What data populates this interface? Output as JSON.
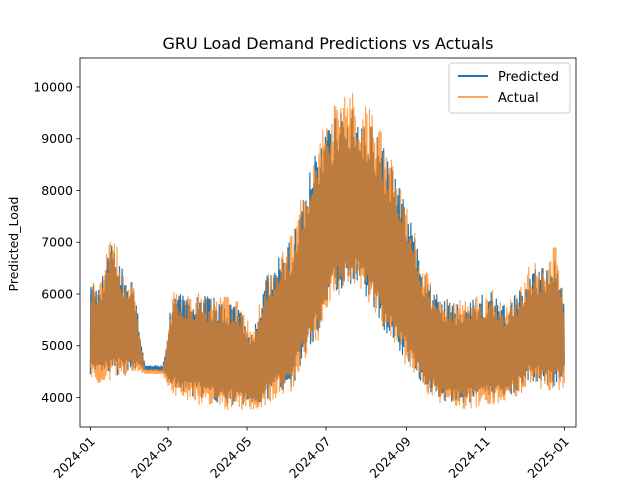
{
  "chart_data": {
    "type": "line",
    "title": "GRU Load Demand Predictions vs Actuals",
    "xlabel": "",
    "ylabel": "Predicted_Load",
    "x_range": [
      "2023-12-24",
      "2025-01-10"
    ],
    "ylim": [
      3430,
      10560
    ],
    "x_ticks": [
      "2024-01",
      "2024-03",
      "2024-05",
      "2024-07",
      "2024-09",
      "2024-11",
      "2025-01"
    ],
    "y_ticks": [
      4000,
      5000,
      6000,
      7000,
      8000,
      9000,
      10000
    ],
    "grid": false,
    "legend_position": "top-right",
    "series": [
      {
        "name": "Predicted",
        "color": "#1f77b4",
        "envelope": {
          "x": [
            "2024-01-01",
            "2024-01-05",
            "2024-01-10",
            "2024-01-15",
            "2024-01-22",
            "2024-01-28",
            "2024-02-02",
            "2024-02-12",
            "2024-02-26",
            "2024-03-05",
            "2024-03-15",
            "2024-03-25",
            "2024-04-05",
            "2024-04-15",
            "2024-04-25",
            "2024-05-05",
            "2024-05-15",
            "2024-05-25",
            "2024-06-05",
            "2024-06-15",
            "2024-06-25",
            "2024-07-05",
            "2024-07-15",
            "2024-07-25",
            "2024-08-05",
            "2024-08-15",
            "2024-08-25",
            "2024-09-05",
            "2024-09-15",
            "2024-09-25",
            "2024-10-05",
            "2024-10-15",
            "2024-10-25",
            "2024-11-05",
            "2024-11-15",
            "2024-11-25",
            "2024-12-05",
            "2024-12-15",
            "2024-12-25",
            "2025-01-01"
          ],
          "high": [
            6550,
            6200,
            6300,
            7100,
            6900,
            6300,
            6450,
            4620,
            4620,
            6100,
            5950,
            6050,
            5950,
            5950,
            5800,
            5200,
            6300,
            6700,
            7100,
            8000,
            9000,
            9300,
            9800,
            9500,
            9400,
            8800,
            8300,
            7400,
            6400,
            6000,
            5900,
            5900,
            6000,
            6100,
            5800,
            6000,
            6500,
            6500,
            6900,
            5900
          ],
          "low": [
            4450,
            4350,
            4400,
            4350,
            4400,
            4450,
            4550,
            4520,
            4500,
            4100,
            4050,
            4000,
            3900,
            3850,
            3850,
            3850,
            3900,
            4100,
            4200,
            4800,
            5200,
            6000,
            6100,
            6200,
            5800,
            5300,
            4900,
            4600,
            4200,
            4000,
            3850,
            3850,
            3900,
            3950,
            4000,
            4100,
            4300,
            4250,
            4200,
            4450
          ]
        }
      },
      {
        "name": "Actual",
        "color": "#ff7f0e",
        "envelope": {
          "x": [
            "2024-01-01",
            "2024-01-05",
            "2024-01-10",
            "2024-01-15",
            "2024-01-22",
            "2024-01-28",
            "2024-02-02",
            "2024-02-12",
            "2024-02-26",
            "2024-03-05",
            "2024-03-15",
            "2024-03-25",
            "2024-04-05",
            "2024-04-15",
            "2024-04-25",
            "2024-05-05",
            "2024-05-15",
            "2024-05-25",
            "2024-06-05",
            "2024-06-15",
            "2024-06-25",
            "2024-07-05",
            "2024-07-15",
            "2024-07-25",
            "2024-08-05",
            "2024-08-15",
            "2024-08-25",
            "2024-09-05",
            "2024-09-15",
            "2024-09-25",
            "2024-10-05",
            "2024-10-15",
            "2024-10-25",
            "2024-11-05",
            "2024-11-15",
            "2024-11-25",
            "2024-12-05",
            "2024-12-15",
            "2024-12-25",
            "2025-01-01"
          ],
          "high": [
            6300,
            6200,
            6300,
            7200,
            6900,
            6300,
            6400,
            4550,
            4550,
            6050,
            6000,
            6050,
            5950,
            6000,
            5900,
            5300,
            6400,
            6800,
            7200,
            8200,
            9200,
            9500,
            10250,
            9700,
            9600,
            9000,
            8400,
            7500,
            6500,
            6100,
            6000,
            5950,
            6050,
            6150,
            5850,
            6050,
            6600,
            6600,
            7050,
            5900
          ],
          "low": [
            4350,
            4250,
            4250,
            4250,
            4300,
            4350,
            4450,
            4450,
            4450,
            3950,
            3900,
            3850,
            3800,
            3750,
            3750,
            3750,
            3800,
            4000,
            4100,
            4700,
            5100,
            5900,
            6000,
            6100,
            5700,
            5200,
            4800,
            4500,
            4100,
            3900,
            3780,
            3780,
            3800,
            3850,
            3900,
            4000,
            4200,
            4150,
            4100,
            4200
          ]
        }
      }
    ]
  }
}
